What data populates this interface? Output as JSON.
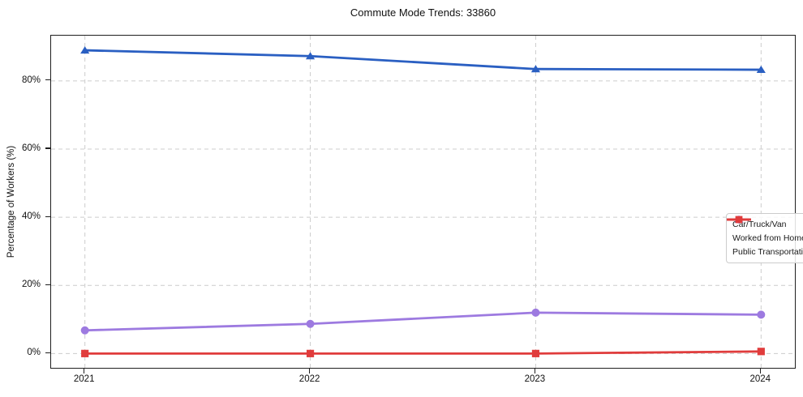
{
  "chart_data": {
    "type": "line",
    "title": "Commute Mode Trends: 33860",
    "xlabel": "",
    "ylabel": "Percentage of Workers (%)",
    "x": [
      2021,
      2022,
      2023,
      2024
    ],
    "x_tick_labels": [
      "2021",
      "2022",
      "2023",
      "2024"
    ],
    "series": [
      {
        "name": "Car/Truck/Van",
        "color": "#2a5fc2",
        "marker": "triangle",
        "values": [
          89.0,
          87.3,
          83.5,
          83.3
        ]
      },
      {
        "name": "Worked from Home",
        "color": "#9d7ae0",
        "marker": "circle",
        "values": [
          6.8,
          8.7,
          12.0,
          11.4
        ]
      },
      {
        "name": "Public Transportation",
        "color": "#e03c3c",
        "marker": "square",
        "values": [
          0.0,
          0.0,
          0.0,
          0.6
        ]
      }
    ],
    "xlim": [
      2020.85,
      2024.15
    ],
    "ylim": [
      -4.2,
      93.3
    ],
    "yticks": [
      0,
      20,
      40,
      60,
      80
    ],
    "ytick_labels": [
      "0%",
      "20%",
      "40%",
      "60%",
      "80%"
    ],
    "grid": true,
    "grid_style": "dashed",
    "grid_color": "#cccccc",
    "legend_position": "center-right",
    "background_color": "#ffffff"
  }
}
